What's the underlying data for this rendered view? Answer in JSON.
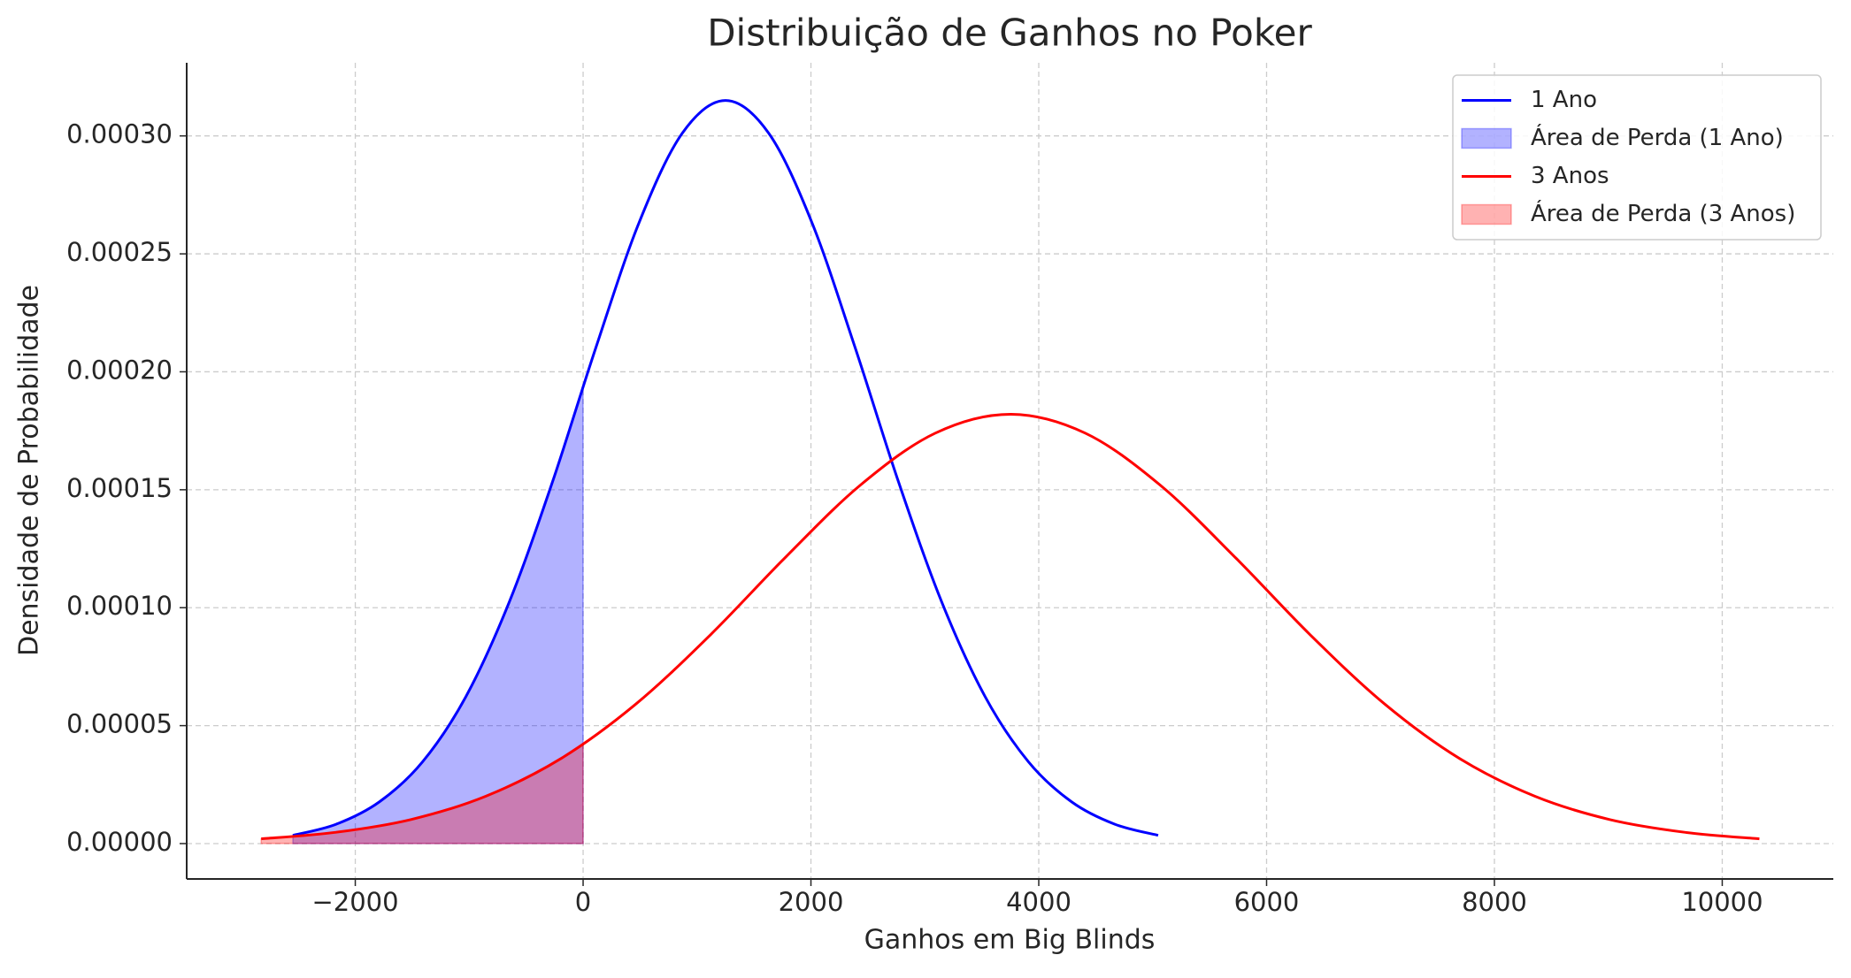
{
  "chart_data": {
    "type": "line",
    "title": "Distribuição de Ganhos no Poker",
    "xlabel": "Ganhos em Big Blinds",
    "ylabel": "Densidade de Probabilidade",
    "xlim": [
      -3480,
      10975
    ],
    "ylim": [
      -1.5e-05,
      0.000331
    ],
    "xticks": [
      {
        "value": -2000,
        "label": "−2000"
      },
      0,
      2000,
      4000,
      6000,
      8000,
      10000
    ],
    "yticks": [
      {
        "value": 0,
        "label": "0.00000"
      },
      {
        "value": 5e-05,
        "label": "0.00005"
      },
      {
        "value": 0.0001,
        "label": "0.00010"
      },
      {
        "value": 0.00015,
        "label": "0.00015"
      },
      {
        "value": 0.0002,
        "label": "0.00020"
      },
      {
        "value": 0.00025,
        "label": "0.00025"
      },
      {
        "value": 0.0003,
        "label": "0.00030"
      }
    ],
    "grid": true,
    "legend": "upper right",
    "series": [
      {
        "name": "1 Ano",
        "color": "#0000ff",
        "style": "line",
        "x": [
          -2548,
          -2168,
          -1788,
          -1409,
          -1029,
          -649,
          -269,
          111,
          490,
          870,
          1250,
          1630,
          2010,
          2389,
          2769,
          3149,
          3529,
          3909,
          4288,
          4668,
          5048
        ],
        "values": [
          3.5e-06,
          8.2e-06,
          1.77e-05,
          3.47e-05,
          6.23e-05,
          0.0001023,
          0.0001533,
          0.0002101,
          0.0002631,
          0.0003011,
          0.000315,
          0.0003011,
          0.0002631,
          0.0002101,
          0.0001533,
          0.0001023,
          6.23e-05,
          3.47e-05,
          1.77e-05,
          8.2e-06,
          3.5e-06
        ]
      },
      {
        "name": "Área de Perda (1 Ano)",
        "color": "#0000ff",
        "style": "area",
        "opacity": 0.3,
        "x": [
          -2548,
          -2168,
          -1788,
          -1409,
          -1029,
          -649,
          -269,
          0
        ],
        "values": [
          3.5e-06,
          8.2e-06,
          1.77e-05,
          3.47e-05,
          6.23e-05,
          0.0001023,
          0.0001533,
          0.0001935
        ]
      },
      {
        "name": "3 Anos",
        "color": "#ff0000",
        "style": "line",
        "x": [
          -2826,
          -2168,
          -1511,
          -853,
          -196,
          462,
          1120,
          1777,
          2435,
          3092,
          3750,
          4408,
          5065,
          5723,
          6381,
          7038,
          7696,
          8354,
          9011,
          9669,
          10326
        ],
        "values": [
          2e-06,
          4.8e-06,
          1.02e-05,
          2.01e-05,
          3.6e-05,
          5.91e-05,
          8.86e-05,
          0.0001214,
          0.000152,
          0.000174,
          0.000182,
          0.000174,
          0.000152,
          0.0001214,
          8.86e-05,
          5.91e-05,
          3.6e-05,
          2.01e-05,
          1.02e-05,
          4.8e-06,
          2e-06
        ]
      },
      {
        "name": "Área de Perda (3 Anos)",
        "color": "#ff0000",
        "style": "area",
        "opacity": 0.3,
        "x": [
          -2826,
          -2168,
          -1511,
          -853,
          -196,
          0
        ],
        "values": [
          2e-06,
          4.8e-06,
          1.02e-05,
          2.01e-05,
          3.6e-05,
          4.21e-05
        ]
      }
    ]
  }
}
